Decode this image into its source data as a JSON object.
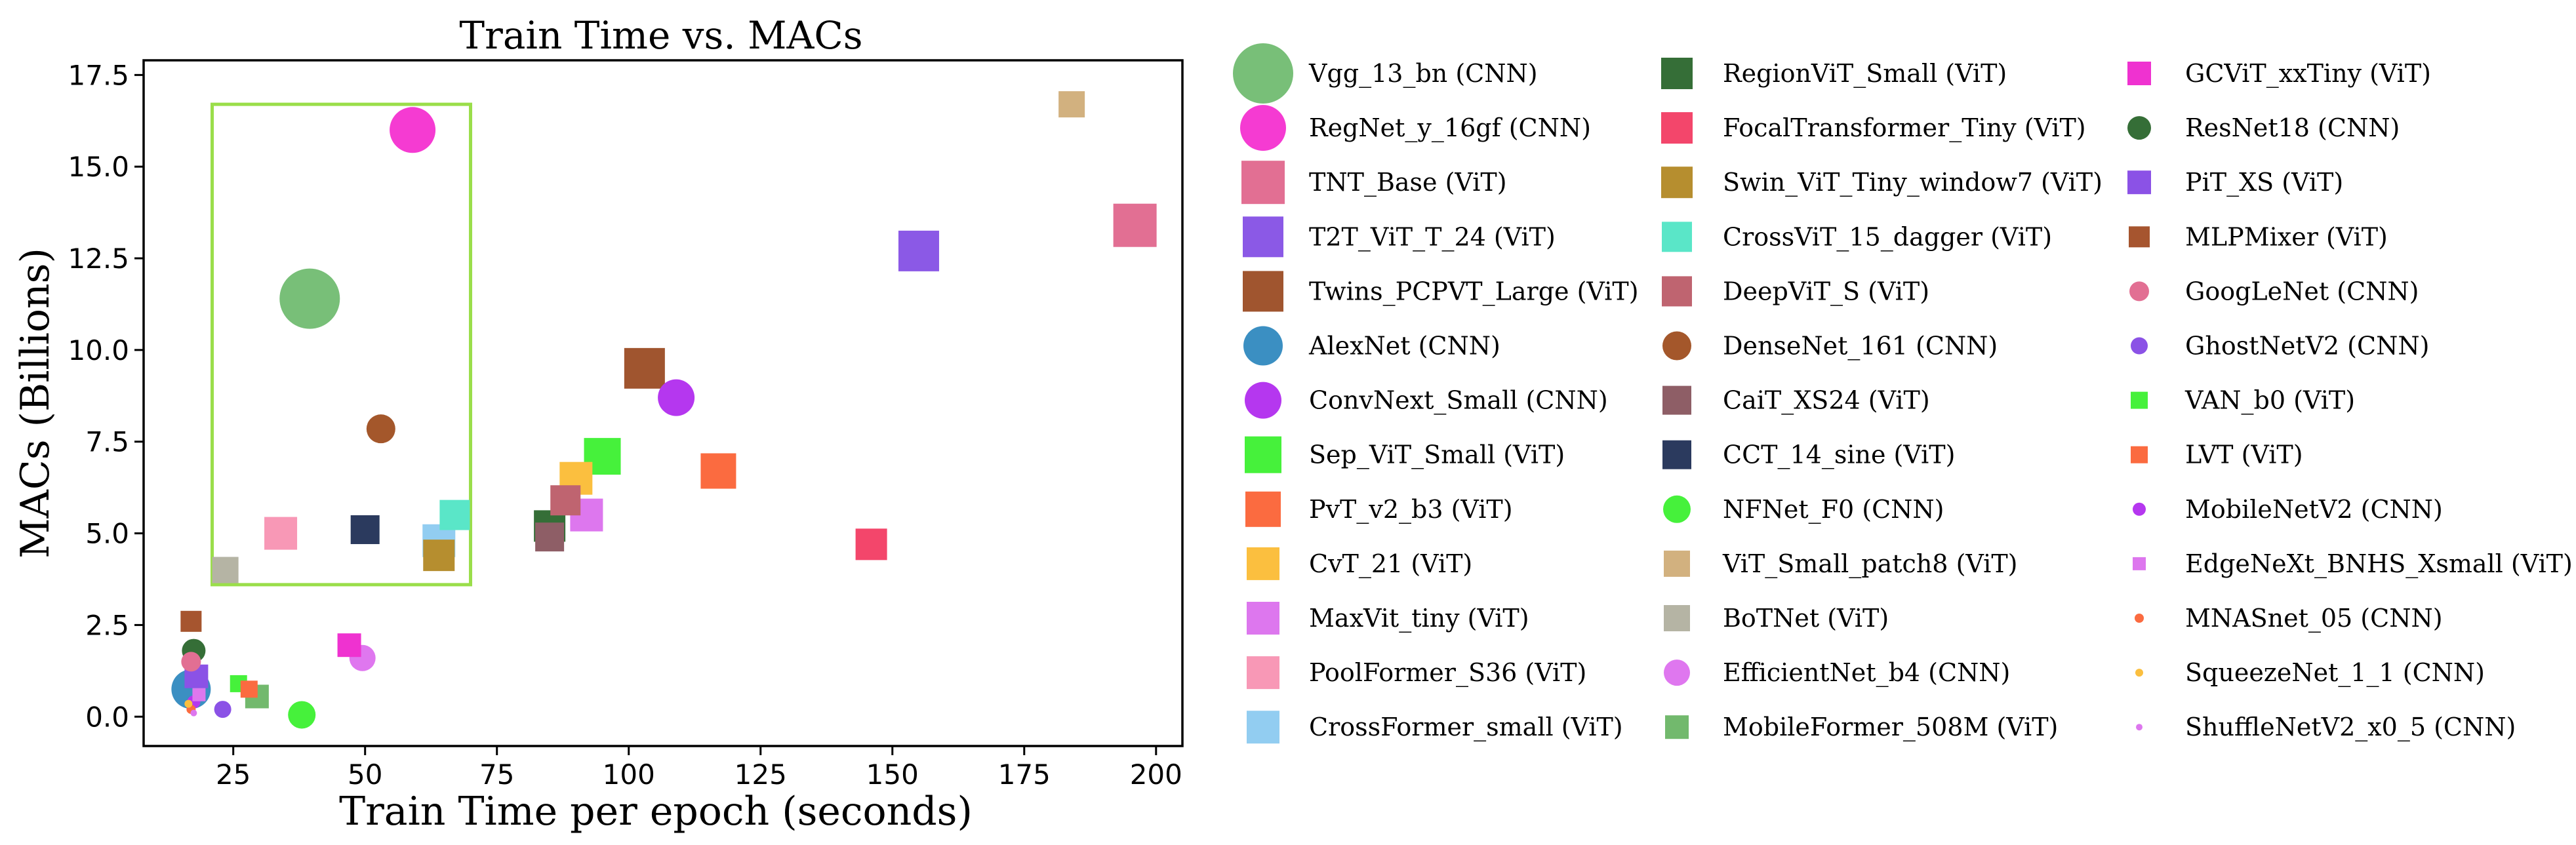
{
  "chart_data": {
    "type": "scatter",
    "title": "Train Time vs. MACs",
    "xlabel": "Train Time per epoch (seconds)",
    "ylabel": "MACs (Billions)",
    "xlim": [
      8,
      205
    ],
    "ylim": [
      -0.8,
      17.9
    ],
    "xticks": [
      25,
      50,
      75,
      100,
      125,
      150,
      175,
      200
    ],
    "yticks": [
      0.0,
      2.5,
      5.0,
      7.5,
      10.0,
      12.5,
      15.0,
      17.5
    ],
    "xtick_labels": [
      "25",
      "50",
      "75",
      "100",
      "125",
      "150",
      "175",
      "200"
    ],
    "ytick_labels": [
      "0.0",
      "2.5",
      "5.0",
      "7.5",
      "10.0",
      "12.5",
      "15.0",
      "17.5"
    ],
    "highlight_box": {
      "x_range": [
        21,
        70
      ],
      "y_range": [
        3.6,
        16.7
      ],
      "color": "#9ade4a"
    },
    "series": [
      {
        "name": "Vgg_13_bn (CNN)",
        "marker": "circle",
        "color": "#78bf78",
        "size": 46,
        "x": 39.5,
        "y": 11.4
      },
      {
        "name": "RegNet_y_16gf (CNN)",
        "marker": "circle",
        "color": "#f53bd2",
        "size": 35,
        "x": 59,
        "y": 16.0
      },
      {
        "name": "TNT_Base (ViT)",
        "marker": "square",
        "color": "#e26f93",
        "size": 33,
        "x": 196,
        "y": 13.4
      },
      {
        "name": "T2T_ViT_T_24 (ViT)",
        "marker": "square",
        "color": "#8b59e6",
        "size": 31,
        "x": 155,
        "y": 12.7
      },
      {
        "name": "Twins_PCPVT_Large (ViT)",
        "marker": "square",
        "color": "#a0552f",
        "size": 31,
        "x": 103,
        "y": 9.5
      },
      {
        "name": "AlexNet (CNN)",
        "marker": "circle",
        "color": "#3b8fc2",
        "size": 30,
        "x": 17,
        "y": 0.75
      },
      {
        "name": "ConvNext_Small (CNN)",
        "marker": "circle",
        "color": "#b537ef",
        "size": 28,
        "x": 109,
        "y": 8.7
      },
      {
        "name": "Sep_ViT_Small (ViT)",
        "marker": "square",
        "color": "#46f13b",
        "size": 28,
        "x": 95,
        "y": 7.1
      },
      {
        "name": "PvT_v2_b3 (ViT)",
        "marker": "square",
        "color": "#fb6b40",
        "size": 27,
        "x": 117,
        "y": 6.7
      },
      {
        "name": "CvT_21 (ViT)",
        "marker": "square",
        "color": "#fbbf3f",
        "size": 25,
        "x": 90,
        "y": 6.5
      },
      {
        "name": "MaxVit_tiny (ViT)",
        "marker": "square",
        "color": "#dd77ee",
        "size": 25,
        "x": 92,
        "y": 5.5
      },
      {
        "name": "PoolFormer_S36 (ViT)",
        "marker": "square",
        "color": "#f898b6",
        "size": 25,
        "x": 34,
        "y": 5.0
      },
      {
        "name": "CrossFormer_small (ViT)",
        "marker": "square",
        "color": "#92cdf1",
        "size": 25,
        "x": 64,
        "y": 4.8
      },
      {
        "name": "RegionViT_Small (ViT)",
        "marker": "square",
        "color": "#356e37",
        "size": 24,
        "x": 85,
        "y": 5.2
      },
      {
        "name": "FocalTransformer_Tiny (ViT)",
        "marker": "square",
        "color": "#f3466b",
        "size": 24,
        "x": 146,
        "y": 4.7
      },
      {
        "name": "Swin_ViT_Tiny_window7 (ViT)",
        "marker": "square",
        "color": "#b68e2f",
        "size": 24,
        "x": 64,
        "y": 4.4
      },
      {
        "name": "CrossViT_15_dagger (ViT)",
        "marker": "square",
        "color": "#5ae6c8",
        "size": 23,
        "x": 67,
        "y": 5.5
      },
      {
        "name": "DeepViT_S (ViT)",
        "marker": "square",
        "color": "#bf6470",
        "size": 23,
        "x": 88,
        "y": 5.9
      },
      {
        "name": "DenseNet_161 (CNN)",
        "marker": "circle",
        "color": "#a4572b",
        "size": 22,
        "x": 53,
        "y": 7.85
      },
      {
        "name": "CaiT_XS24 (ViT)",
        "marker": "square",
        "color": "#8e5e66",
        "size": 22,
        "x": 85,
        "y": 4.9
      },
      {
        "name": "CCT_14_sine (ViT)",
        "marker": "square",
        "color": "#2b3a5e",
        "size": 22,
        "x": 50,
        "y": 5.1
      },
      {
        "name": "NFNet_F0 (CNN)",
        "marker": "circle",
        "color": "#46f13b",
        "size": 21,
        "x": 38,
        "y": 0.05
      },
      {
        "name": "ViT_Small_patch8 (ViT)",
        "marker": "square",
        "color": "#d2b17f",
        "size": 20,
        "x": 184,
        "y": 16.7
      },
      {
        "name": "BoTNet (ViT)",
        "marker": "square",
        "color": "#b5b4a4",
        "size": 20,
        "x": 23.5,
        "y": 4.0
      },
      {
        "name": "EfficientNet_b4 (CNN)",
        "marker": "circle",
        "color": "#df77ef",
        "size": 20,
        "x": 49.5,
        "y": 1.6
      },
      {
        "name": "MobileFormer_508M (ViT)",
        "marker": "square",
        "color": "#72b96d",
        "size": 18,
        "x": 29.5,
        "y": 0.55
      },
      {
        "name": "GCViT_xxTiny (ViT)",
        "marker": "square",
        "color": "#ef32d0",
        "size": 18,
        "x": 47,
        "y": 1.95
      },
      {
        "name": "ResNet18 (CNN)",
        "marker": "circle",
        "color": "#356e37",
        "size": 18,
        "x": 17.5,
        "y": 1.8
      },
      {
        "name": "PiT_XS (ViT)",
        "marker": "square",
        "color": "#8b52e6",
        "size": 18,
        "x": 18,
        "y": 1.1
      },
      {
        "name": "MLPMixer (ViT)",
        "marker": "square",
        "color": "#a6552f",
        "size": 16,
        "x": 17,
        "y": 2.6
      },
      {
        "name": "GoogLeNet (CNN)",
        "marker": "circle",
        "color": "#e26f93",
        "size": 15,
        "x": 17,
        "y": 1.5
      },
      {
        "name": "GhostNetV2 (CNN)",
        "marker": "circle",
        "color": "#8b52e6",
        "size": 13,
        "x": 23,
        "y": 0.2
      },
      {
        "name": "VAN_b0 (ViT)",
        "marker": "square",
        "color": "#46f13b",
        "size": 13,
        "x": 26,
        "y": 0.9
      },
      {
        "name": "LVT (ViT)",
        "marker": "square",
        "color": "#fb6b40",
        "size": 13,
        "x": 28,
        "y": 0.75
      },
      {
        "name": "MobileNetV2 (CNN)",
        "marker": "circle",
        "color": "#b537ef",
        "size": 10,
        "x": 17.5,
        "y": 0.4
      },
      {
        "name": "EdgeNeXt_BNHS_Xsmall (ViT)",
        "marker": "square",
        "color": "#dd77ee",
        "size": 10,
        "x": 18.5,
        "y": 0.6
      },
      {
        "name": "MNASnet_05 (CNN)",
        "marker": "circle",
        "color": "#fb6b40",
        "size": 7,
        "x": 17,
        "y": 0.2
      },
      {
        "name": "SqueezeNet_1_1 (CNN)",
        "marker": "circle",
        "color": "#fbbf3f",
        "size": 6,
        "x": 16.5,
        "y": 0.35
      },
      {
        "name": "ShuffleNetV2_x0_5 (CNN)",
        "marker": "circle",
        "color": "#dd77ee",
        "size": 5,
        "x": 17.5,
        "y": 0.1
      }
    ]
  }
}
